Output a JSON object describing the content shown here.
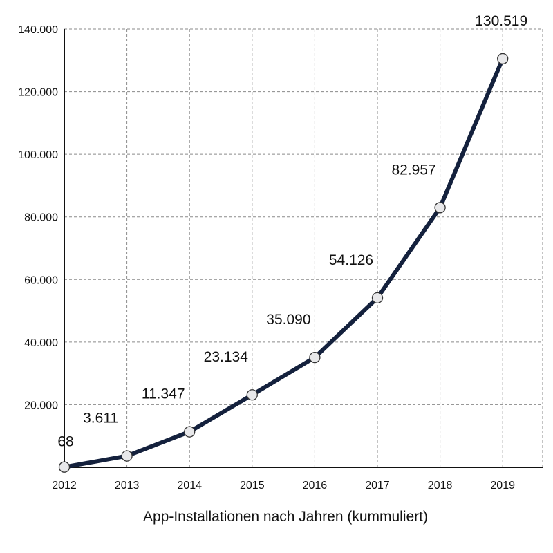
{
  "chart_data": {
    "type": "line",
    "title": "",
    "xlabel": "App-Installationen nach Jahren (kummuliert)",
    "ylabel": "",
    "x": [
      "2012",
      "2013",
      "2014",
      "2015",
      "2016",
      "2017",
      "2018",
      "2019"
    ],
    "series": [
      {
        "values": [
          68,
          3611,
          11347,
          23134,
          35090,
          54126,
          82957,
          130519
        ],
        "data_labels": [
          "68",
          "3.611",
          "11.347",
          "23.134",
          "35.090",
          "54.126",
          "82.957",
          "130.519"
        ]
      }
    ],
    "ylim": [
      0,
      140000
    ],
    "y_ticks": [
      20000,
      40000,
      60000,
      80000,
      100000,
      120000,
      140000
    ],
    "y_tick_labels": [
      "20.000",
      "40.000",
      "60.000",
      "80.000",
      "100.000",
      "120.000",
      "140.000"
    ],
    "grid": true,
    "line_color": "#14213d",
    "marker_fill": "#e8e8ea"
  }
}
